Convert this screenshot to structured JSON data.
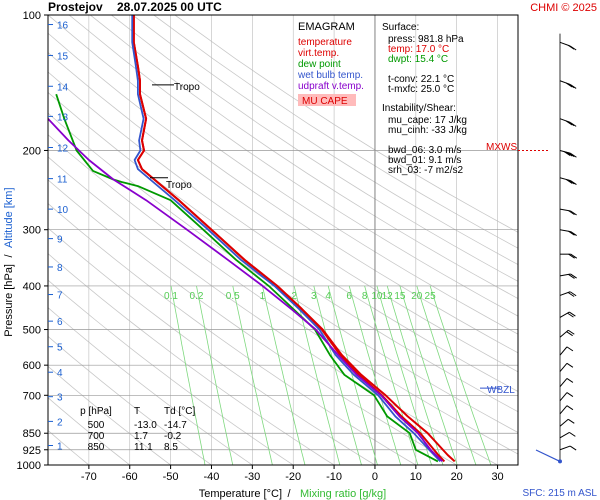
{
  "header": {
    "station": "Prostejov",
    "datetime": "28.07.2025 00 UTC",
    "credit": "CHMI © 2025"
  },
  "legend": {
    "title": "EMAGRAM",
    "items": [
      {
        "label": "temperature",
        "color": "#dd0000"
      },
      {
        "label": "virt.temp.",
        "color": "#dd0000"
      },
      {
        "label": "dew point",
        "color": "#009900"
      },
      {
        "label": "wet bulb temp.",
        "color": "#3355cc"
      },
      {
        "label": "udpraft v.temp.",
        "color": "#8800cc"
      }
    ],
    "mu_cape_label": "MU CAPE"
  },
  "surface": {
    "title": "Surface:",
    "rows": [
      {
        "text": "press: 981.8 hPa",
        "color": "#000000"
      },
      {
        "text": "temp: 17.0 °C",
        "color": "#dd0000"
      },
      {
        "text": "dwpt: 15.4 °C",
        "color": "#009900"
      },
      {
        "text": "",
        "color": "#000000"
      },
      {
        "text": "t-conv: 22.1 °C",
        "color": "#000000"
      },
      {
        "text": "t-mxfc: 25.0 °C",
        "color": "#000000"
      }
    ]
  },
  "instability": {
    "title": "Instability/Shear:",
    "rows": [
      "mu_cape: 17 J/kg",
      "mu_cinh: -33 J/kg",
      "",
      "bwd_06: 3.0 m/s",
      "bwd_01: 9.1 m/s",
      "srh_03: -7 m2/s2"
    ]
  },
  "table": {
    "headers": [
      "p [hPa]",
      "T",
      "Td [°C]"
    ],
    "rows": [
      [
        "500",
        "-13.0",
        "-14.7"
      ],
      [
        "700",
        "1.7",
        "-0.2"
      ],
      [
        "850",
        "11.1",
        "8.5"
      ]
    ]
  },
  "labels": {
    "tropo_upper": "Tropo",
    "tropo_lower": "Tropo",
    "mxws": "MXWS",
    "wbzl": "WBZL",
    "sfc": "SFC: 215 m ASL",
    "xlabel_temp": "Temperature [°C]",
    "xlabel_sep": "/",
    "xlabel_mix": "Mixing ratio [g/kg]",
    "ylabel_pressure": "Pressure [hPa]",
    "ylabel_sep": "/",
    "ylabel_alt": "Altitude [km]"
  },
  "chart_data": {
    "type": "line",
    "title": "",
    "xlabel": "Temperature [°C] / Mixing ratio [g/kg]",
    "ylabel": "Pressure [hPa] / Altitude [km]",
    "xlim": [
      -80,
      35
    ],
    "ylim": [
      1000,
      100
    ],
    "y_scale": "log",
    "x_ticks": [
      -70,
      -60,
      -50,
      -40,
      -30,
      -20,
      -10,
      0,
      10,
      20,
      30
    ],
    "pressure_ticks": [
      100,
      200,
      300,
      400,
      500,
      600,
      700,
      850,
      925,
      1000
    ],
    "altitude_ticks": [
      {
        "km": 1,
        "p": 905
      },
      {
        "km": 2,
        "p": 800
      },
      {
        "km": 3,
        "p": 705
      },
      {
        "km": 4,
        "p": 622
      },
      {
        "km": 5,
        "p": 546
      },
      {
        "km": 6,
        "p": 479
      },
      {
        "km": 7,
        "p": 418
      },
      {
        "km": 8,
        "p": 363
      },
      {
        "km": 9,
        "p": 314
      },
      {
        "km": 10,
        "p": 270
      },
      {
        "km": 11,
        "p": 231
      },
      {
        "km": 12,
        "p": 197
      },
      {
        "km": 13,
        "p": 168
      },
      {
        "km": 14,
        "p": 144
      },
      {
        "km": 15,
        "p": 123
      },
      {
        "km": 16,
        "p": 105
      }
    ],
    "mixing_ratio_labels": [
      "0.1",
      "0.2",
      "0.5",
      "1",
      "2",
      "3",
      "4",
      "6",
      "8",
      "10",
      "12",
      "15",
      "20",
      "25"
    ],
    "mixing_ratio_values": [
      0.1,
      0.2,
      0.5,
      1,
      2,
      3,
      4,
      6,
      8,
      10,
      12,
      15,
      20,
      25
    ],
    "grid": true,
    "series": [
      {
        "name": "temperature",
        "color": "#dd0000",
        "points": [
          [
            17.0,
            981.8
          ],
          [
            15.5,
            950
          ],
          [
            11.1,
            850
          ],
          [
            6.5,
            780
          ],
          [
            1.7,
            700
          ],
          [
            -4,
            630
          ],
          [
            -8.5,
            570
          ],
          [
            -13.0,
            500
          ],
          [
            -18,
            450
          ],
          [
            -24,
            400
          ],
          [
            -32,
            350
          ],
          [
            -40,
            300
          ],
          [
            -48,
            258
          ],
          [
            -54,
            232
          ],
          [
            -57,
            220
          ],
          [
            -58,
            210
          ],
          [
            -56.5,
            200
          ],
          [
            -57,
            190
          ],
          [
            -56,
            170
          ],
          [
            -57.5,
            150
          ],
          [
            -57.5,
            140
          ],
          [
            -58,
            130
          ],
          [
            -59,
            115
          ],
          [
            -59,
            100
          ]
        ]
      },
      {
        "name": "virt.temp.",
        "color": "#dd0000",
        "points": [
          [
            19.5,
            981.8
          ],
          [
            17.8,
            950
          ],
          [
            12.9,
            850
          ],
          [
            8.0,
            780
          ],
          [
            2.6,
            700
          ],
          [
            -3.4,
            630
          ],
          [
            -8.1,
            570
          ],
          [
            -12.8,
            500
          ],
          [
            -17.9,
            450
          ],
          [
            -23.9,
            400
          ],
          [
            -31.9,
            350
          ],
          [
            -40,
            300
          ],
          [
            -48,
            258
          ],
          [
            -54,
            232
          ],
          [
            -57,
            220
          ],
          [
            -58,
            210
          ],
          [
            -56.5,
            200
          ],
          [
            -57,
            190
          ],
          [
            -56,
            170
          ],
          [
            -57.5,
            150
          ],
          [
            -57.5,
            140
          ],
          [
            -58,
            130
          ],
          [
            -59,
            115
          ],
          [
            -59,
            100
          ]
        ]
      },
      {
        "name": "wet bulb temp.",
        "color": "#3355cc",
        "points": [
          [
            16.0,
            981.8
          ],
          [
            13.5,
            930
          ],
          [
            9.5,
            850
          ],
          [
            5.0,
            780
          ],
          [
            0.8,
            700
          ],
          [
            -5.2,
            630
          ],
          [
            -9.6,
            570
          ],
          [
            -13.6,
            500
          ],
          [
            -18.6,
            450
          ],
          [
            -24.6,
            400
          ],
          [
            -32.8,
            350
          ],
          [
            -40.8,
            300
          ],
          [
            -49,
            258
          ],
          [
            -55,
            232
          ],
          [
            -58,
            220
          ],
          [
            -58.8,
            210
          ],
          [
            -57.4,
            200
          ],
          [
            -57.7,
            190
          ],
          [
            -56.6,
            170
          ],
          [
            -58,
            150
          ],
          [
            -58,
            140
          ],
          [
            -58.5,
            130
          ],
          [
            -59.4,
            115
          ],
          [
            -59.4,
            100
          ]
        ]
      },
      {
        "name": "dew point",
        "color": "#009900",
        "points": [
          [
            15.4,
            981.8
          ],
          [
            10,
            925
          ],
          [
            8.5,
            850
          ],
          [
            3,
            780
          ],
          [
            -0.2,
            700
          ],
          [
            -7.5,
            630
          ],
          [
            -11,
            570
          ],
          [
            -14.7,
            500
          ],
          [
            -20,
            450
          ],
          [
            -26,
            400
          ],
          [
            -34,
            350
          ],
          [
            -42,
            300
          ],
          [
            -50,
            258
          ],
          [
            -58,
            240
          ],
          [
            -62,
            235
          ],
          [
            -64,
            232
          ],
          [
            -69,
            222
          ],
          [
            -73,
            200
          ],
          [
            -76,
            170
          ],
          [
            -78,
            150
          ]
        ]
      },
      {
        "name": "udpraft v.temp.",
        "color": "#8800cc",
        "points": [
          [
            16.5,
            981.8
          ],
          [
            13.8,
            930
          ],
          [
            10.5,
            850
          ],
          [
            6.0,
            780
          ],
          [
            1.5,
            700
          ],
          [
            -4.5,
            630
          ],
          [
            -9.0,
            570
          ],
          [
            -14.5,
            500
          ],
          [
            -20.5,
            450
          ],
          [
            -27.5,
            400
          ],
          [
            -36,
            350
          ],
          [
            -46,
            300
          ],
          [
            -56,
            258
          ],
          [
            -64,
            232
          ],
          [
            -70,
            210
          ],
          [
            -75,
            190
          ],
          [
            -80,
            170
          ]
        ]
      }
    ],
    "wind_barbs": [
      {
        "p": 115,
        "dir": 250,
        "kt": 20
      },
      {
        "p": 140,
        "dir": 250,
        "kt": 25
      },
      {
        "p": 170,
        "dir": 250,
        "kt": 30
      },
      {
        "p": 200,
        "dir": 255,
        "kt": 40
      },
      {
        "p": 230,
        "dir": 255,
        "kt": 30
      },
      {
        "p": 270,
        "dir": 260,
        "kt": 20
      },
      {
        "p": 300,
        "dir": 260,
        "kt": 20
      },
      {
        "p": 340,
        "dir": 270,
        "kt": 15
      },
      {
        "p": 380,
        "dir": 280,
        "kt": 15
      },
      {
        "p": 420,
        "dir": 290,
        "kt": 15
      },
      {
        "p": 470,
        "dir": 300,
        "kt": 15
      },
      {
        "p": 520,
        "dir": 310,
        "kt": 15
      },
      {
        "p": 570,
        "dir": 320,
        "kt": 10
      },
      {
        "p": 620,
        "dir": 320,
        "kt": 10
      },
      {
        "p": 670,
        "dir": 320,
        "kt": 10
      },
      {
        "p": 720,
        "dir": 320,
        "kt": 10
      },
      {
        "p": 770,
        "dir": 320,
        "kt": 10
      },
      {
        "p": 820,
        "dir": 310,
        "kt": 10
      },
      {
        "p": 870,
        "dir": 300,
        "kt": 10
      },
      {
        "p": 925,
        "dir": 290,
        "kt": 10
      }
    ],
    "markers": [
      {
        "label": "Tropo",
        "p": 143
      },
      {
        "label": "Tropo",
        "p": 230
      },
      {
        "label": "MXWS",
        "p": 200
      },
      {
        "label": "WBZL",
        "p": 675
      }
    ]
  }
}
